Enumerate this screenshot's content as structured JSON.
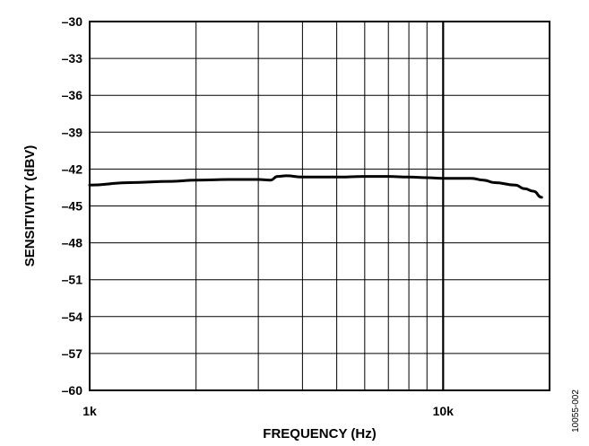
{
  "chart_data": {
    "type": "line",
    "title": "",
    "xlabel": "FREQUENCY (Hz)",
    "ylabel": "SENSITIVITY (dBV)",
    "x_scale": "log",
    "xlim": [
      1000,
      20000
    ],
    "ylim": [
      -60,
      -30
    ],
    "x_tick_labels": [
      {
        "value": 1000,
        "label": "1k"
      },
      {
        "value": 10000,
        "label": "10k"
      }
    ],
    "y_ticks": [
      -30,
      -33,
      -36,
      -39,
      -42,
      -45,
      -48,
      -51,
      -54,
      -57,
      -60
    ],
    "y_tick_labels": [
      "–30",
      "–33",
      "–36",
      "–39",
      "–42",
      "–45",
      "–48",
      "–51",
      "–54",
      "–57",
      "–60"
    ],
    "grid": true,
    "series": [
      {
        "color": "#000000",
        "x": [
          1000,
          1300,
          1700,
          2000,
          2500,
          3000,
          3250,
          3400,
          3600,
          4000,
          5000,
          6000,
          7000,
          8000,
          9000,
          10000,
          11000,
          12000,
          13000,
          14000,
          16000,
          17000,
          18000,
          19000
        ],
        "y": [
          -43.3,
          -43.1,
          -43.0,
          -42.9,
          -42.85,
          -42.85,
          -42.9,
          -42.6,
          -42.55,
          -42.65,
          -42.65,
          -42.6,
          -42.6,
          -42.65,
          -42.7,
          -42.75,
          -42.75,
          -42.75,
          -42.9,
          -43.1,
          -43.3,
          -43.6,
          -43.8,
          -44.3
        ]
      }
    ]
  },
  "figure_id": "10055-002"
}
